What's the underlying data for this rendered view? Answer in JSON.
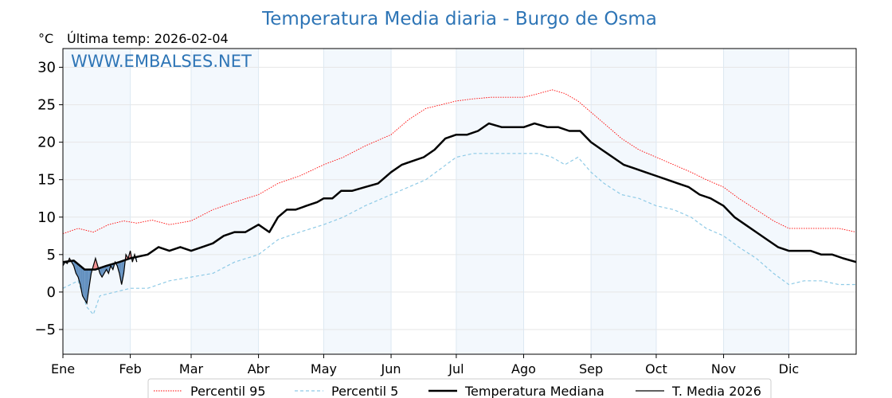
{
  "title": "Temperatura Media diaria - Burgo de Osma",
  "unit_label": "°C",
  "last_temp_label": "Última temp: 2026-02-04",
  "watermark": "WWW.EMBALSES.NET",
  "colors": {
    "p95": "#ff0000",
    "p5": "#8ecae6",
    "median": "#000000",
    "current": "#000000",
    "above": "#f08080",
    "below": "#4a7fb5",
    "band": "#f3f8fd",
    "grid": "#e6e6e6"
  },
  "chart_data": {
    "type": "line",
    "title": "Temperatura Media diaria - Burgo de Osma",
    "ylabel": "°C",
    "xlim": [
      1,
      366
    ],
    "ylim": [
      -8.3,
      32.5
    ],
    "yticks": [
      -5,
      0,
      5,
      10,
      15,
      20,
      25,
      30
    ],
    "grid": true,
    "legend_position": "bottom",
    "months": [
      {
        "label": "Ene",
        "day": 1
      },
      {
        "label": "Feb",
        "day": 32
      },
      {
        "label": "Mar",
        "day": 60
      },
      {
        "label": "Abr",
        "day": 91
      },
      {
        "label": "May",
        "day": 121
      },
      {
        "label": "Jun",
        "day": 152
      },
      {
        "label": "Jul",
        "day": 182
      },
      {
        "label": "Ago",
        "day": 213
      },
      {
        "label": "Sep",
        "day": 244
      },
      {
        "label": "Oct",
        "day": 274
      },
      {
        "label": "Nov",
        "day": 305
      },
      {
        "label": "Dic",
        "day": 335
      }
    ],
    "series": [
      {
        "name": "Percentil 95",
        "style": "dotted",
        "points": [
          [
            1,
            7.8
          ],
          [
            8,
            8.5
          ],
          [
            15,
            8.0
          ],
          [
            22,
            9.0
          ],
          [
            29,
            9.5
          ],
          [
            35,
            9.2
          ],
          [
            42,
            9.6
          ],
          [
            50,
            9.0
          ],
          [
            60,
            9.5
          ],
          [
            70,
            11.0
          ],
          [
            80,
            12.0
          ],
          [
            91,
            13.0
          ],
          [
            100,
            14.5
          ],
          [
            110,
            15.5
          ],
          [
            121,
            17.0
          ],
          [
            130,
            18.0
          ],
          [
            140,
            19.5
          ],
          [
            152,
            21.0
          ],
          [
            160,
            23.0
          ],
          [
            168,
            24.5
          ],
          [
            175,
            25.0
          ],
          [
            182,
            25.5
          ],
          [
            190,
            25.8
          ],
          [
            198,
            26.0
          ],
          [
            205,
            26.0
          ],
          [
            213,
            26.0
          ],
          [
            220,
            26.5
          ],
          [
            226,
            27.0
          ],
          [
            232,
            26.5
          ],
          [
            238,
            25.5
          ],
          [
            244,
            24.0
          ],
          [
            250,
            22.5
          ],
          [
            258,
            20.5
          ],
          [
            266,
            19.0
          ],
          [
            274,
            18.0
          ],
          [
            282,
            17.0
          ],
          [
            290,
            16.0
          ],
          [
            297,
            15.0
          ],
          [
            305,
            14.0
          ],
          [
            312,
            12.5
          ],
          [
            320,
            11.0
          ],
          [
            328,
            9.5
          ],
          [
            335,
            8.5
          ],
          [
            342,
            8.5
          ],
          [
            350,
            8.5
          ],
          [
            358,
            8.5
          ],
          [
            366,
            8.0
          ]
        ]
      },
      {
        "name": "Percentil 5",
        "style": "dashed",
        "points": [
          [
            1,
            0.5
          ],
          [
            8,
            1.5
          ],
          [
            12,
            -2.0
          ],
          [
            15,
            -3.0
          ],
          [
            18,
            -0.5
          ],
          [
            25,
            0.0
          ],
          [
            32,
            0.5
          ],
          [
            40,
            0.5
          ],
          [
            50,
            1.5
          ],
          [
            60,
            2.0
          ],
          [
            70,
            2.5
          ],
          [
            80,
            4.0
          ],
          [
            91,
            5.0
          ],
          [
            100,
            7.0
          ],
          [
            110,
            8.0
          ],
          [
            121,
            9.0
          ],
          [
            130,
            10.0
          ],
          [
            140,
            11.5
          ],
          [
            152,
            13.0
          ],
          [
            160,
            14.0
          ],
          [
            168,
            15.0
          ],
          [
            175,
            16.5
          ],
          [
            182,
            18.0
          ],
          [
            190,
            18.5
          ],
          [
            198,
            18.5
          ],
          [
            205,
            18.5
          ],
          [
            213,
            18.5
          ],
          [
            220,
            18.5
          ],
          [
            226,
            18.0
          ],
          [
            232,
            17.0
          ],
          [
            238,
            18.0
          ],
          [
            244,
            16.0
          ],
          [
            250,
            14.5
          ],
          [
            258,
            13.0
          ],
          [
            266,
            12.5
          ],
          [
            274,
            11.5
          ],
          [
            282,
            11.0
          ],
          [
            290,
            10.0
          ],
          [
            297,
            8.5
          ],
          [
            305,
            7.5
          ],
          [
            312,
            6.0
          ],
          [
            320,
            4.5
          ],
          [
            328,
            2.5
          ],
          [
            335,
            1.0
          ],
          [
            342,
            1.5
          ],
          [
            350,
            1.5
          ],
          [
            358,
            1.0
          ],
          [
            366,
            1.0
          ]
        ]
      },
      {
        "name": "Temperatura Mediana",
        "style": "solid-thick",
        "points": [
          [
            1,
            4.0
          ],
          [
            6,
            4.2
          ],
          [
            11,
            3.0
          ],
          [
            16,
            3.0
          ],
          [
            21,
            3.5
          ],
          [
            27,
            4.0
          ],
          [
            32,
            4.5
          ],
          [
            40,
            5.0
          ],
          [
            45,
            6.0
          ],
          [
            50,
            5.5
          ],
          [
            55,
            6.0
          ],
          [
            60,
            5.5
          ],
          [
            65,
            6.0
          ],
          [
            70,
            6.5
          ],
          [
            75,
            7.5
          ],
          [
            80,
            8.0
          ],
          [
            85,
            8.0
          ],
          [
            91,
            9.0
          ],
          [
            96,
            8.0
          ],
          [
            100,
            10.0
          ],
          [
            104,
            11.0
          ],
          [
            108,
            11.0
          ],
          [
            113,
            11.5
          ],
          [
            118,
            12.0
          ],
          [
            121,
            12.5
          ],
          [
            125,
            12.5
          ],
          [
            129,
            13.5
          ],
          [
            134,
            13.5
          ],
          [
            140,
            14.0
          ],
          [
            146,
            14.5
          ],
          [
            152,
            16.0
          ],
          [
            157,
            17.0
          ],
          [
            162,
            17.5
          ],
          [
            167,
            18.0
          ],
          [
            172,
            19.0
          ],
          [
            177,
            20.5
          ],
          [
            182,
            21.0
          ],
          [
            187,
            21.0
          ],
          [
            192,
            21.5
          ],
          [
            197,
            22.5
          ],
          [
            203,
            22.0
          ],
          [
            208,
            22.0
          ],
          [
            213,
            22.0
          ],
          [
            218,
            22.5
          ],
          [
            224,
            22.0
          ],
          [
            229,
            22.0
          ],
          [
            234,
            21.5
          ],
          [
            239,
            21.5
          ],
          [
            244,
            20.0
          ],
          [
            249,
            19.0
          ],
          [
            254,
            18.0
          ],
          [
            259,
            17.0
          ],
          [
            264,
            16.5
          ],
          [
            269,
            16.0
          ],
          [
            274,
            15.5
          ],
          [
            279,
            15.0
          ],
          [
            284,
            14.5
          ],
          [
            289,
            14.0
          ],
          [
            294,
            13.0
          ],
          [
            299,
            12.5
          ],
          [
            305,
            11.5
          ],
          [
            310,
            10.0
          ],
          [
            315,
            9.0
          ],
          [
            320,
            8.0
          ],
          [
            325,
            7.0
          ],
          [
            330,
            6.0
          ],
          [
            335,
            5.5
          ],
          [
            340,
            5.5
          ],
          [
            345,
            5.5
          ],
          [
            350,
            5.0
          ],
          [
            355,
            5.0
          ],
          [
            360,
            4.5
          ],
          [
            366,
            4.0
          ]
        ]
      },
      {
        "name": "T. Media 2026",
        "style": "solid-thin",
        "points": [
          [
            1,
            3.5
          ],
          [
            2,
            4.0
          ],
          [
            3,
            3.8
          ],
          [
            4,
            4.5
          ],
          [
            5,
            4.0
          ],
          [
            6,
            3.5
          ],
          [
            7,
            2.5
          ],
          [
            8,
            2.0
          ],
          [
            9,
            1.0
          ],
          [
            10,
            -0.5
          ],
          [
            11,
            -1.0
          ],
          [
            12,
            -1.5
          ],
          [
            13,
            0.5
          ],
          [
            14,
            2.5
          ],
          [
            15,
            3.5
          ],
          [
            16,
            4.5
          ],
          [
            17,
            3.5
          ],
          [
            18,
            2.5
          ],
          [
            19,
            2.0
          ],
          [
            20,
            2.5
          ],
          [
            21,
            3.0
          ],
          [
            22,
            2.5
          ],
          [
            23,
            3.5
          ],
          [
            24,
            3.0
          ],
          [
            25,
            4.0
          ],
          [
            26,
            3.5
          ],
          [
            27,
            2.5
          ],
          [
            28,
            1.0
          ],
          [
            29,
            2.5
          ],
          [
            30,
            5.0
          ],
          [
            31,
            4.5
          ],
          [
            32,
            5.5
          ],
          [
            33,
            4.0
          ],
          [
            34,
            5.0
          ],
          [
            35,
            4.0
          ]
        ]
      }
    ]
  },
  "legend": [
    {
      "label": "Percentil 95",
      "style": "dotted"
    },
    {
      "label": "Percentil 5",
      "style": "dashed"
    },
    {
      "label": "Temperatura Mediana",
      "style": "solid-thick"
    },
    {
      "label": "T. Media 2026",
      "style": "solid-thin"
    }
  ]
}
